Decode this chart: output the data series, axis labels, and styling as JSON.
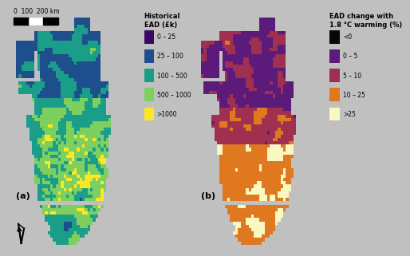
{
  "background_color": "#c0c0c0",
  "fig_width": 4.74,
  "fig_height": 3.14,
  "panel_a_label": "(a)",
  "panel_b_label": "(b)",
  "legend_a_title": "Historical\nEAD (£k)",
  "legend_a_entries": [
    {
      "label": "0 – 25",
      "color": "#3b0764"
    },
    {
      "label": "25 – 100",
      "color": "#1e4f8c"
    },
    {
      "label": "100 – 500",
      "color": "#1a9e8a"
    },
    {
      "label": "500 – 1000",
      "color": "#7dcf5e"
    },
    {
      "label": ">1000",
      "color": "#fde725"
    }
  ],
  "legend_b_title": "EAD change with\n1.8 °C warming (%)",
  "legend_b_entries": [
    {
      "label": "<0",
      "color": "#080808"
    },
    {
      "label": "0 – 5",
      "color": "#5c1a7a"
    },
    {
      "label": "5 – 10",
      "color": "#a03050"
    },
    {
      "label": "10 – 25",
      "color": "#e07820"
    },
    {
      "label": ">25",
      "color": "#f8f8c0"
    }
  ],
  "scalebar_text": "0  100  200 km",
  "seed_a": 42,
  "seed_b": 7
}
